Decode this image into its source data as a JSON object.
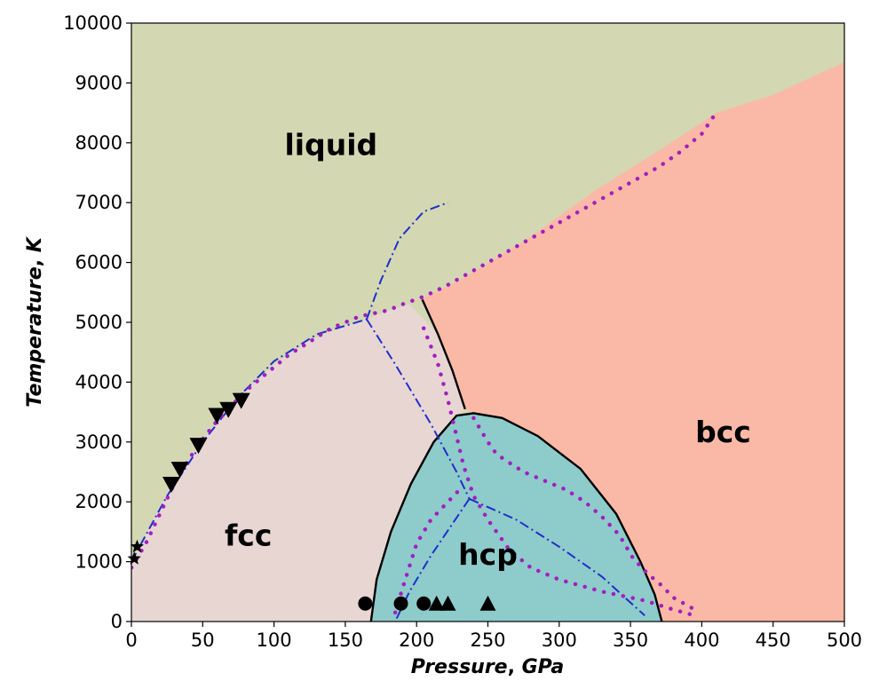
{
  "chart_data": {
    "type": "phase-diagram",
    "title": "",
    "xlabel": {
      "italic": "Pressure",
      "rest": ", ",
      "unit": "GPa"
    },
    "ylabel": {
      "italic": "Temperature",
      "rest": ", ",
      "unit": "K"
    },
    "xlim": [
      0,
      500
    ],
    "ylim": [
      0,
      10000
    ],
    "xticks": [
      0,
      50,
      100,
      150,
      200,
      250,
      300,
      350,
      400,
      450,
      500
    ],
    "yticks": [
      0,
      1000,
      2000,
      3000,
      4000,
      5000,
      6000,
      7000,
      8000,
      9000,
      10000
    ],
    "regions": [
      {
        "name": "liquid",
        "label": "liquid",
        "color": "#d3d8b2",
        "label_at": [
          140,
          7800
        ]
      },
      {
        "name": "bcc",
        "label": "bcc",
        "color": "#fab9a6",
        "label_at": [
          415,
          3000
        ]
      },
      {
        "name": "fcc",
        "label": "fcc",
        "color": "#e8d6d3",
        "label_at": [
          82,
          1270
        ]
      },
      {
        "name": "hcp",
        "label": "hcp",
        "color": "#8ecbcb",
        "label_at": [
          250,
          950
        ]
      }
    ],
    "boundaries": {
      "fcc_liquid": [
        [
          0,
          1000
        ],
        [
          25,
          2150
        ],
        [
          50,
          3050
        ],
        [
          75,
          3750
        ],
        [
          100,
          4300
        ],
        [
          125,
          4700
        ],
        [
          150,
          4950
        ],
        [
          165,
          5050
        ],
        [
          180,
          5200
        ],
        [
          195,
          5300
        ]
      ],
      "bcc_liquid": [
        [
          195,
          5300
        ],
        [
          230,
          5700
        ],
        [
          275,
          6350
        ],
        [
          325,
          7200
        ],
        [
          375,
          7950
        ],
        [
          410,
          8500
        ],
        [
          450,
          8800
        ],
        [
          500,
          9350
        ]
      ],
      "fcc_bcc_solid": [
        [
          204,
          5380
        ],
        [
          215,
          4800
        ],
        [
          225,
          4200
        ],
        [
          234,
          3550
        ]
      ],
      "hcp_dome_solid": [
        [
          168,
          0
        ],
        [
          172,
          700
        ],
        [
          182,
          1500
        ],
        [
          196,
          2300
        ],
        [
          212,
          3000
        ],
        [
          228,
          3440
        ],
        [
          240,
          3480
        ],
        [
          260,
          3400
        ],
        [
          285,
          3100
        ],
        [
          315,
          2550
        ],
        [
          340,
          1800
        ],
        [
          357,
          1000
        ],
        [
          367,
          450
        ],
        [
          372,
          0
        ]
      ]
    },
    "series": [
      {
        "name": "dash-dot melting",
        "style": "dashdot",
        "color": "#1f2fcc",
        "points": [
          [
            0,
            1000
          ],
          [
            25,
            2100
          ],
          [
            50,
            3000
          ],
          [
            75,
            3750
          ],
          [
            100,
            4350
          ],
          [
            130,
            4800
          ],
          [
            165,
            5050
          ]
        ]
      },
      {
        "name": "dash-dot liquid branch",
        "style": "dashdot",
        "color": "#1f2fcc",
        "points": [
          [
            165,
            5050
          ],
          [
            175,
            5700
          ],
          [
            188,
            6400
          ],
          [
            205,
            6850
          ],
          [
            222,
            7000
          ]
        ]
      },
      {
        "name": "dash-dot fcc-hcp",
        "style": "dashdot",
        "color": "#1f2fcc",
        "points": [
          [
            165,
            5050
          ],
          [
            185,
            4300
          ],
          [
            210,
            3300
          ],
          [
            228,
            2500
          ],
          [
            237,
            2050
          ]
        ]
      },
      {
        "name": "dash-dot hcp lower-left",
        "style": "dashdot",
        "color": "#1f2fcc",
        "points": [
          [
            237,
            2050
          ],
          [
            210,
            1100
          ],
          [
            195,
            500
          ],
          [
            185,
            0
          ]
        ]
      },
      {
        "name": "dash-dot hcp right",
        "style": "dashdot",
        "color": "#1f2fcc",
        "points": [
          [
            237,
            2050
          ],
          [
            270,
            1700
          ],
          [
            300,
            1250
          ],
          [
            330,
            750
          ],
          [
            360,
            100
          ]
        ]
      },
      {
        "name": "dotted melting",
        "style": "dotted",
        "color": "#a020c0",
        "points": [
          [
            0,
            900
          ],
          [
            10,
            1300
          ],
          [
            20,
            1800
          ],
          [
            30,
            2300
          ],
          [
            40,
            2700
          ],
          [
            50,
            3050
          ],
          [
            60,
            3350
          ],
          [
            70,
            3600
          ],
          [
            80,
            3850
          ],
          [
            90,
            4050
          ],
          [
            100,
            4250
          ],
          [
            110,
            4450
          ],
          [
            120,
            4600
          ],
          [
            130,
            4750
          ],
          [
            140,
            4900
          ],
          [
            150,
            5000
          ],
          [
            160,
            5100
          ],
          [
            170,
            5150
          ],
          [
            180,
            5200
          ],
          [
            190,
            5300
          ],
          [
            205,
            5430
          ],
          [
            220,
            5600
          ],
          [
            235,
            5800
          ],
          [
            250,
            6000
          ],
          [
            265,
            6200
          ],
          [
            280,
            6400
          ],
          [
            295,
            6600
          ],
          [
            310,
            6800
          ],
          [
            325,
            7000
          ],
          [
            340,
            7200
          ],
          [
            355,
            7400
          ],
          [
            370,
            7600
          ],
          [
            385,
            7850
          ],
          [
            400,
            8150
          ],
          [
            410,
            8500
          ]
        ]
      },
      {
        "name": "dotted solid boundary",
        "style": "dotted",
        "color": "#a020c0",
        "points": [
          [
            205,
            4900
          ],
          [
            215,
            4300
          ],
          [
            222,
            3700
          ],
          [
            228,
            3100
          ],
          [
            233,
            2600
          ],
          [
            240,
            2100
          ],
          [
            250,
            1700
          ],
          [
            265,
            1200
          ],
          [
            280,
            900
          ],
          [
            300,
            700
          ],
          [
            330,
            500
          ],
          [
            360,
            350
          ],
          [
            380,
            200
          ],
          [
            395,
            100
          ]
        ]
      },
      {
        "name": "dotted hcp phase line",
        "style": "dotted",
        "color": "#a020c0",
        "points": [
          [
            240,
            3400
          ],
          [
            250,
            3000
          ],
          [
            256,
            2800
          ],
          [
            262,
            2700
          ],
          [
            275,
            2500
          ],
          [
            290,
            2350
          ],
          [
            305,
            2200
          ],
          [
            318,
            2000
          ],
          [
            330,
            1750
          ],
          [
            342,
            1450
          ],
          [
            352,
            1050
          ],
          [
            362,
            800
          ],
          [
            372,
            600
          ],
          [
            380,
            400
          ],
          [
            395,
            200
          ]
        ]
      },
      {
        "name": "dotted hcp boundary",
        "style": "dotted",
        "color": "#a020c0",
        "points": [
          [
            185,
            150
          ],
          [
            192,
            700
          ],
          [
            200,
            1300
          ],
          [
            210,
            1700
          ],
          [
            222,
            2000
          ],
          [
            232,
            2250
          ]
        ]
      }
    ],
    "markers": [
      {
        "name": "triangle-down",
        "symbol": "triangle-down",
        "points": [
          [
            28,
            2300
          ],
          [
            34,
            2550
          ],
          [
            47,
            2950
          ],
          [
            60,
            3450
          ],
          [
            68,
            3550
          ],
          [
            77,
            3700
          ]
        ]
      },
      {
        "name": "star",
        "symbol": "star",
        "points": [
          [
            2,
            1050
          ],
          [
            4,
            1250
          ]
        ]
      },
      {
        "name": "circle",
        "symbol": "circle",
        "points": [
          [
            164,
            300
          ],
          [
            189,
            300
          ],
          [
            205,
            300
          ]
        ]
      },
      {
        "name": "triangle-up",
        "symbol": "triangle-up",
        "points": [
          [
            214,
            300
          ],
          [
            222,
            300
          ],
          [
            250,
            300
          ]
        ]
      }
    ]
  }
}
